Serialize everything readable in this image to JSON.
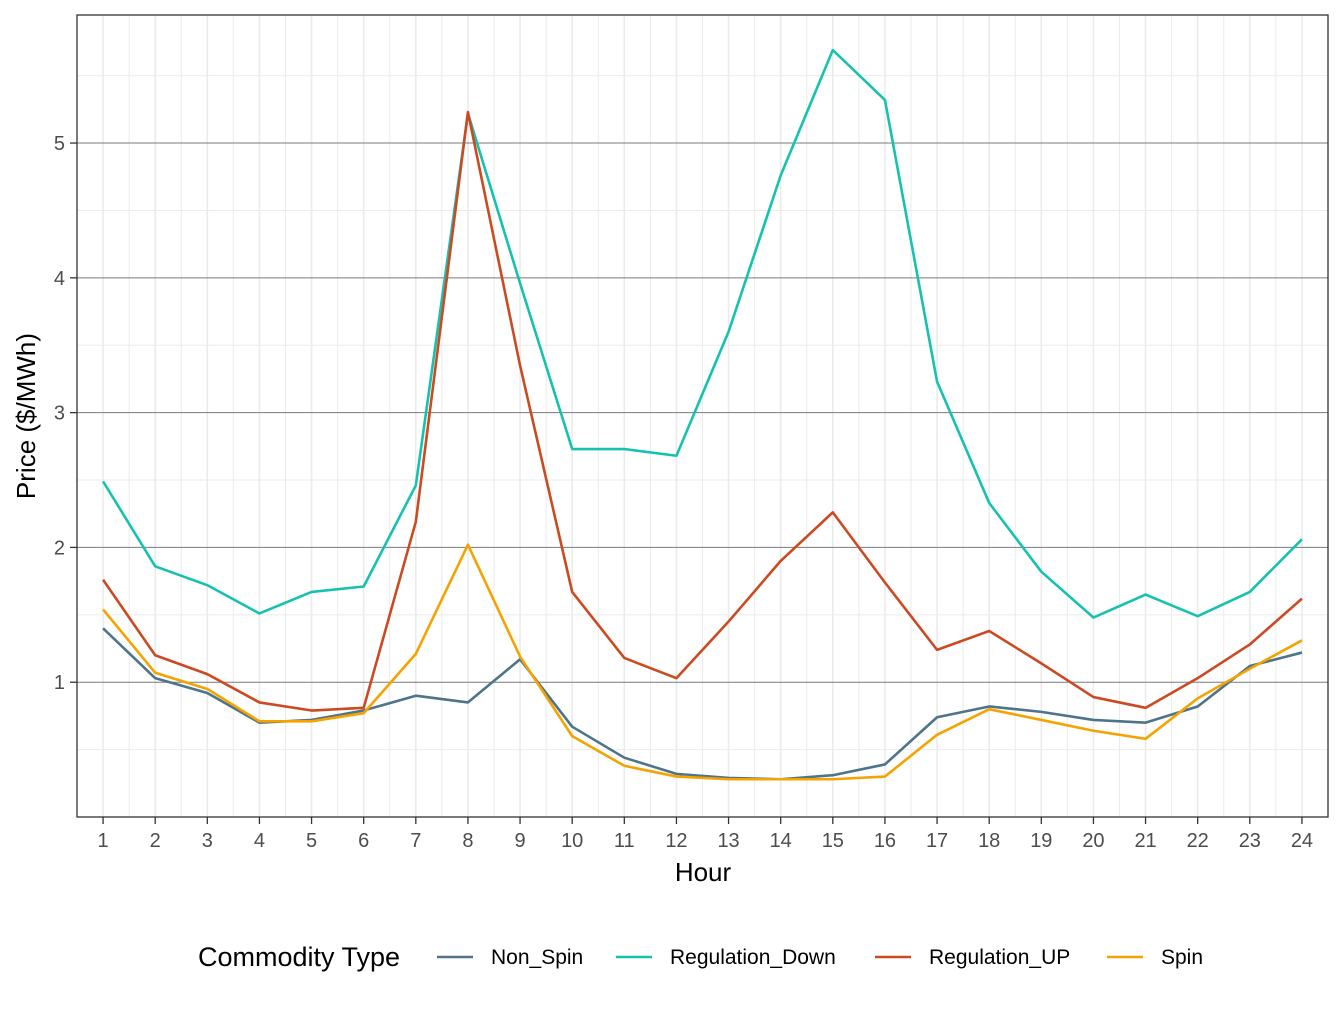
{
  "chart_data": {
    "type": "line",
    "title": "",
    "xlabel": "Hour",
    "ylabel": "Price ($/MWh)",
    "x": [
      1,
      2,
      3,
      4,
      5,
      6,
      7,
      8,
      9,
      10,
      11,
      12,
      13,
      14,
      15,
      16,
      17,
      18,
      19,
      20,
      21,
      22,
      23,
      24
    ],
    "x_tick_labels": [
      "1",
      "2",
      "3",
      "4",
      "5",
      "6",
      "7",
      "8",
      "9",
      "10",
      "11",
      "12",
      "13",
      "14",
      "15",
      "16",
      "17",
      "18",
      "19",
      "20",
      "21",
      "22",
      "23",
      "24"
    ],
    "y_ticks": [
      1,
      2,
      3,
      4,
      5
    ],
    "y_tick_labels": [
      "1",
      "2",
      "3",
      "4",
      "5"
    ],
    "xlim": [
      0.5,
      24.5
    ],
    "ylim": [
      0.0,
      5.95
    ],
    "grid": true,
    "legend": {
      "title": "Commodity Type",
      "position": "bottom"
    },
    "series": [
      {
        "name": "Non_Spin",
        "color": "#4E7489",
        "values": [
          1.4,
          1.03,
          0.92,
          0.7,
          0.72,
          0.79,
          0.9,
          0.85,
          1.17,
          0.67,
          0.44,
          0.32,
          0.29,
          0.28,
          0.31,
          0.39,
          0.74,
          0.82,
          0.78,
          0.72,
          0.7,
          0.82,
          1.12,
          1.22
        ]
      },
      {
        "name": "Regulation_Down",
        "color": "#16C2AF",
        "values": [
          2.49,
          1.86,
          1.72,
          1.51,
          1.67,
          1.71,
          2.46,
          5.22,
          3.96,
          2.73,
          2.73,
          2.68,
          3.6,
          4.76,
          5.69,
          5.32,
          3.23,
          2.33,
          1.82,
          1.48,
          1.65,
          1.49,
          1.67,
          2.06
        ]
      },
      {
        "name": "Regulation_UP",
        "color": "#CC4A22",
        "values": [
          1.76,
          1.2,
          1.06,
          0.85,
          0.79,
          0.81,
          2.19,
          5.23,
          3.35,
          1.67,
          1.18,
          1.03,
          1.45,
          1.9,
          2.26,
          1.74,
          1.24,
          1.38,
          1.14,
          0.89,
          0.81,
          1.03,
          1.28,
          1.62
        ]
      },
      {
        "name": "Spin",
        "color": "#F5A300",
        "values": [
          1.54,
          1.07,
          0.95,
          0.71,
          0.71,
          0.77,
          1.21,
          2.02,
          1.19,
          0.6,
          0.38,
          0.3,
          0.28,
          0.28,
          0.28,
          0.3,
          0.61,
          0.8,
          0.72,
          0.64,
          0.58,
          0.88,
          1.1,
          1.31
        ]
      }
    ]
  }
}
